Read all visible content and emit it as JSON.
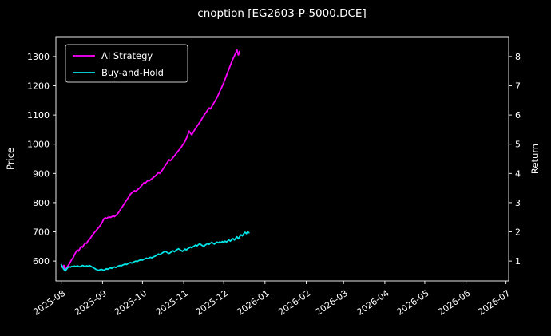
{
  "window": {
    "title": "cnoption [EG2603-P-5000.DCE]"
  },
  "chart_data": {
    "type": "line",
    "title": "cnoption [EG2603-P-5000.DCE]",
    "xlabel": "",
    "ylabel_left": "Price",
    "ylabel_right": "Return",
    "background_color": "#000000",
    "text_color": "#ffffff",
    "spine_color": "#ffffff",
    "grid": false,
    "legend_position": "upper-left",
    "x_domain_days": [
      -4,
      336
    ],
    "y_left_domain": [
      532,
      1368
    ],
    "y_right_domain": [
      0.32,
      8.68
    ],
    "x_ticks": [
      {
        "day": 0,
        "label": "2025-08"
      },
      {
        "day": 31,
        "label": "2025-09"
      },
      {
        "day": 61,
        "label": "2025-10"
      },
      {
        "day": 92,
        "label": "2025-11"
      },
      {
        "day": 122,
        "label": "2025-12"
      },
      {
        "day": 153,
        "label": "2026-01"
      },
      {
        "day": 184,
        "label": "2026-02"
      },
      {
        "day": 212,
        "label": "2026-03"
      },
      {
        "day": 243,
        "label": "2026-04"
      },
      {
        "day": 273,
        "label": "2026-05"
      },
      {
        "day": 304,
        "label": "2026-06"
      },
      {
        "day": 334,
        "label": "2026-07"
      }
    ],
    "y_left_ticks": [
      600,
      700,
      800,
      900,
      1000,
      1100,
      1200,
      1300
    ],
    "y_right_ticks": [
      1,
      2,
      3,
      4,
      5,
      6,
      7,
      8
    ],
    "legend": [
      {
        "label": "AI Strategy",
        "color": "#ff00ff"
      },
      {
        "label": "Buy-and-Hold",
        "color": "#00e5e5"
      }
    ],
    "series": [
      {
        "name": "AI Strategy",
        "color": "#ff00ff",
        "points": [
          [
            0,
            588
          ],
          [
            1,
            578
          ],
          [
            2,
            585
          ],
          [
            3,
            570
          ],
          [
            4,
            576
          ],
          [
            5,
            583
          ],
          [
            6,
            590
          ],
          [
            7,
            598
          ],
          [
            8,
            606
          ],
          [
            9,
            612
          ],
          [
            10,
            622
          ],
          [
            11,
            630
          ],
          [
            12,
            638
          ],
          [
            13,
            634
          ],
          [
            14,
            642
          ],
          [
            15,
            650
          ],
          [
            16,
            647
          ],
          [
            17,
            655
          ],
          [
            18,
            662
          ],
          [
            19,
            660
          ],
          [
            20,
            668
          ],
          [
            21,
            673
          ],
          [
            22,
            679
          ],
          [
            23,
            686
          ],
          [
            24,
            692
          ],
          [
            25,
            698
          ],
          [
            26,
            703
          ],
          [
            27,
            709
          ],
          [
            28,
            714
          ],
          [
            29,
            720
          ],
          [
            30,
            726
          ],
          [
            31,
            735
          ],
          [
            32,
            744
          ],
          [
            33,
            748
          ],
          [
            34,
            746
          ],
          [
            35,
            749
          ],
          [
            36,
            751
          ],
          [
            37,
            749
          ],
          [
            38,
            752
          ],
          [
            39,
            754
          ],
          [
            40,
            752
          ],
          [
            41,
            756
          ],
          [
            42,
            760
          ],
          [
            43,
            766
          ],
          [
            44,
            773
          ],
          [
            45,
            780
          ],
          [
            46,
            787
          ],
          [
            47,
            794
          ],
          [
            48,
            801
          ],
          [
            49,
            808
          ],
          [
            50,
            815
          ],
          [
            51,
            822
          ],
          [
            52,
            829
          ],
          [
            53,
            834
          ],
          [
            54,
            838
          ],
          [
            55,
            841
          ],
          [
            56,
            839
          ],
          [
            57,
            843
          ],
          [
            58,
            847
          ],
          [
            59,
            851
          ],
          [
            60,
            856
          ],
          [
            61,
            862
          ],
          [
            62,
            868
          ],
          [
            63,
            866
          ],
          [
            64,
            871
          ],
          [
            65,
            876
          ],
          [
            66,
            874
          ],
          [
            67,
            878
          ],
          [
            68,
            882
          ],
          [
            69,
            885
          ],
          [
            70,
            889
          ],
          [
            71,
            893
          ],
          [
            72,
            898
          ],
          [
            73,
            903
          ],
          [
            74,
            900
          ],
          [
            75,
            906
          ],
          [
            76,
            912
          ],
          [
            77,
            919
          ],
          [
            78,
            926
          ],
          [
            79,
            933
          ],
          [
            80,
            940
          ],
          [
            81,
            947
          ],
          [
            82,
            944
          ],
          [
            83,
            949
          ],
          [
            84,
            955
          ],
          [
            85,
            960
          ],
          [
            86,
            966
          ],
          [
            87,
            972
          ],
          [
            88,
            978
          ],
          [
            89,
            983
          ],
          [
            90,
            989
          ],
          [
            91,
            996
          ],
          [
            92,
            1003
          ],
          [
            93,
            1010
          ],
          [
            94,
            1020
          ],
          [
            95,
            1032
          ],
          [
            96,
            1045
          ],
          [
            97,
            1038
          ],
          [
            98,
            1032
          ],
          [
            99,
            1040
          ],
          [
            100,
            1048
          ],
          [
            101,
            1055
          ],
          [
            102,
            1062
          ],
          [
            103,
            1068
          ],
          [
            104,
            1075
          ],
          [
            105,
            1082
          ],
          [
            106,
            1090
          ],
          [
            107,
            1097
          ],
          [
            108,
            1104
          ],
          [
            109,
            1110
          ],
          [
            110,
            1117
          ],
          [
            111,
            1124
          ],
          [
            112,
            1121
          ],
          [
            113,
            1128
          ],
          [
            114,
            1136
          ],
          [
            115,
            1144
          ],
          [
            116,
            1152
          ],
          [
            117,
            1160
          ],
          [
            118,
            1170
          ],
          [
            119,
            1180
          ],
          [
            120,
            1190
          ],
          [
            121,
            1200
          ],
          [
            122,
            1210
          ],
          [
            123,
            1222
          ],
          [
            124,
            1234
          ],
          [
            125,
            1246
          ],
          [
            126,
            1258
          ],
          [
            127,
            1270
          ],
          [
            128,
            1282
          ],
          [
            129,
            1292
          ],
          [
            130,
            1302
          ],
          [
            131,
            1312
          ],
          [
            132,
            1322
          ],
          [
            133,
            1305
          ],
          [
            134,
            1318
          ]
        ]
      },
      {
        "name": "Buy-and-Hold",
        "color": "#00e5e5",
        "points": [
          [
            0,
            588
          ],
          [
            1,
            580
          ],
          [
            2,
            572
          ],
          [
            3,
            566
          ],
          [
            4,
            572
          ],
          [
            5,
            578
          ],
          [
            6,
            581
          ],
          [
            7,
            579
          ],
          [
            8,
            582
          ],
          [
            9,
            580
          ],
          [
            10,
            583
          ],
          [
            11,
            581
          ],
          [
            12,
            584
          ],
          [
            13,
            582
          ],
          [
            14,
            580
          ],
          [
            15,
            583
          ],
          [
            16,
            585
          ],
          [
            17,
            583
          ],
          [
            18,
            581
          ],
          [
            19,
            584
          ],
          [
            20,
            582
          ],
          [
            21,
            585
          ],
          [
            22,
            583
          ],
          [
            23,
            580
          ],
          [
            24,
            578
          ],
          [
            25,
            575
          ],
          [
            26,
            572
          ],
          [
            27,
            570
          ],
          [
            28,
            568
          ],
          [
            29,
            570
          ],
          [
            30,
            572
          ],
          [
            31,
            570
          ],
          [
            32,
            568
          ],
          [
            33,
            571
          ],
          [
            34,
            574
          ],
          [
            35,
            572
          ],
          [
            36,
            575
          ],
          [
            37,
            577
          ],
          [
            38,
            575
          ],
          [
            39,
            578
          ],
          [
            40,
            580
          ],
          [
            41,
            578
          ],
          [
            42,
            581
          ],
          [
            43,
            583
          ],
          [
            44,
            585
          ],
          [
            45,
            583
          ],
          [
            46,
            586
          ],
          [
            47,
            588
          ],
          [
            48,
            590
          ],
          [
            49,
            588
          ],
          [
            50,
            591
          ],
          [
            51,
            593
          ],
          [
            52,
            595
          ],
          [
            53,
            593
          ],
          [
            54,
            596
          ],
          [
            55,
            598
          ],
          [
            56,
            600
          ],
          [
            57,
            598
          ],
          [
            58,
            601
          ],
          [
            59,
            603
          ],
          [
            60,
            605
          ],
          [
            61,
            603
          ],
          [
            62,
            606
          ],
          [
            63,
            608
          ],
          [
            64,
            610
          ],
          [
            65,
            608
          ],
          [
            66,
            611
          ],
          [
            67,
            613
          ],
          [
            68,
            611
          ],
          [
            69,
            614
          ],
          [
            70,
            616
          ],
          [
            71,
            618
          ],
          [
            72,
            621
          ],
          [
            73,
            624
          ],
          [
            74,
            622
          ],
          [
            75,
            625
          ],
          [
            76,
            628
          ],
          [
            77,
            631
          ],
          [
            78,
            634
          ],
          [
            79,
            631
          ],
          [
            80,
            628
          ],
          [
            81,
            626
          ],
          [
            82,
            629
          ],
          [
            83,
            632
          ],
          [
            84,
            635
          ],
          [
            85,
            632
          ],
          [
            86,
            636
          ],
          [
            87,
            639
          ],
          [
            88,
            642
          ],
          [
            89,
            639
          ],
          [
            90,
            636
          ],
          [
            91,
            633
          ],
          [
            92,
            637
          ],
          [
            93,
            641
          ],
          [
            94,
            638
          ],
          [
            95,
            642
          ],
          [
            96,
            645
          ],
          [
            97,
            648
          ],
          [
            98,
            645
          ],
          [
            99,
            649
          ],
          [
            100,
            652
          ],
          [
            101,
            655
          ],
          [
            102,
            652
          ],
          [
            103,
            656
          ],
          [
            104,
            659
          ],
          [
            105,
            656
          ],
          [
            106,
            653
          ],
          [
            107,
            650
          ],
          [
            108,
            654
          ],
          [
            109,
            657
          ],
          [
            110,
            660
          ],
          [
            111,
            657
          ],
          [
            112,
            661
          ],
          [
            113,
            664
          ],
          [
            114,
            661
          ],
          [
            115,
            658
          ],
          [
            116,
            662
          ],
          [
            117,
            665
          ],
          [
            118,
            662
          ],
          [
            119,
            666
          ],
          [
            120,
            663
          ],
          [
            121,
            667
          ],
          [
            122,
            664
          ],
          [
            123,
            668
          ],
          [
            124,
            665
          ],
          [
            125,
            669
          ],
          [
            126,
            672
          ],
          [
            127,
            668
          ],
          [
            128,
            673
          ],
          [
            129,
            677
          ],
          [
            130,
            672
          ],
          [
            131,
            678
          ],
          [
            132,
            683
          ],
          [
            133,
            676
          ],
          [
            134,
            684
          ],
          [
            135,
            690
          ],
          [
            136,
            686
          ],
          [
            137,
            693
          ],
          [
            138,
            699
          ],
          [
            139,
            694
          ],
          [
            140,
            700
          ],
          [
            141,
            697
          ]
        ]
      }
    ]
  }
}
